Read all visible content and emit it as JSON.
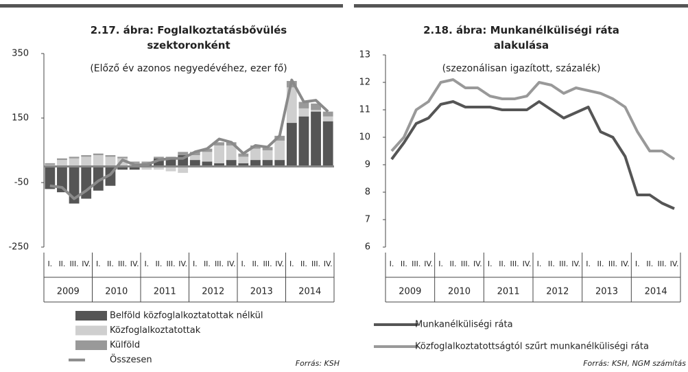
{
  "chart_data": [
    {
      "type": "bar",
      "stacked": true,
      "title": "2.17. ábra: Foglalkoztatásbővülés szektoronként",
      "subtitle": "(Előző év azonos negyedévéhez, ezer fő)",
      "categories": [
        "I.",
        "II.",
        "III.",
        "IV.",
        "I.",
        "II.",
        "III.",
        "IV.",
        "I.",
        "II.",
        "III.",
        "IV.",
        "I.",
        "II.",
        "III.",
        "IV.",
        "I.",
        "II.",
        "III.",
        "IV.",
        "I.",
        "II.",
        "III.",
        "IV."
      ],
      "years": [
        "2009",
        "2010",
        "2011",
        "2012",
        "2013",
        "2014"
      ],
      "ylim": [
        -250,
        350
      ],
      "yticks": [
        -250,
        -50,
        150,
        350
      ],
      "series": [
        {
          "name": "Belföld közfoglalkoztatottak nélkül",
          "color": "#555555",
          "values": [
            -70,
            -80,
            -115,
            -100,
            -75,
            -60,
            -10,
            -10,
            10,
            25,
            25,
            35,
            20,
            15,
            10,
            20,
            10,
            20,
            20,
            20,
            135,
            155,
            170,
            140
          ]
        },
        {
          "name": "Közfoglalkoztatottak",
          "color": "#cfcfcf",
          "values": [
            5,
            20,
            25,
            30,
            35,
            30,
            25,
            10,
            -10,
            -10,
            -15,
            -20,
            15,
            30,
            55,
            45,
            20,
            35,
            30,
            60,
            110,
            25,
            5,
            15
          ]
        },
        {
          "name": "Külföld",
          "color": "#999999",
          "values": [
            5,
            5,
            5,
            5,
            5,
            5,
            5,
            5,
            5,
            5,
            5,
            10,
            10,
            10,
            10,
            10,
            10,
            10,
            10,
            15,
            20,
            20,
            20,
            15
          ]
        },
        {
          "name": "Összesen",
          "type": "line",
          "color": "#8a8a8a",
          "values": [
            -60,
            -65,
            -100,
            -75,
            -45,
            -25,
            20,
            5,
            5,
            20,
            25,
            25,
            45,
            55,
            85,
            75,
            40,
            65,
            60,
            95,
            268,
            200,
            205,
            170
          ]
        }
      ],
      "source": "Forrás: KSH"
    },
    {
      "type": "line",
      "title": "2.18. ábra: Munkanélküliségi ráta alakulása",
      "subtitle": "(szezonálisan igazított, százalék)",
      "categories": [
        "I.",
        "II.",
        "III.",
        "IV.",
        "I.",
        "II.",
        "III.",
        "IV.",
        "I.",
        "II.",
        "III.",
        "IV.",
        "I.",
        "II.",
        "III.",
        "IV.",
        "I.",
        "II.",
        "III.",
        "IV.",
        "I.",
        "II.",
        "III.",
        "IV."
      ],
      "years": [
        "2009",
        "2010",
        "2011",
        "2012",
        "2013",
        "2014"
      ],
      "ylim": [
        6,
        13
      ],
      "yticks": [
        6,
        7,
        8,
        9,
        10,
        11,
        12,
        13
      ],
      "series": [
        {
          "name": "Munkanélküliségi ráta",
          "color": "#555555",
          "values": [
            9.2,
            9.8,
            10.5,
            10.7,
            11.2,
            11.3,
            11.1,
            11.1,
            11.1,
            11.0,
            11.0,
            11.0,
            11.3,
            11.0,
            10.7,
            10.9,
            11.1,
            10.2,
            10.0,
            9.3,
            7.9,
            7.9,
            7.6,
            7.4
          ]
        },
        {
          "name": "Közfoglalkoztatottságtól szűrt munkanélküliségi ráta",
          "color": "#999999",
          "values": [
            9.5,
            10.0,
            11.0,
            11.3,
            12.0,
            12.1,
            11.8,
            11.8,
            11.5,
            11.4,
            11.4,
            11.5,
            12.0,
            11.9,
            11.6,
            11.8,
            11.7,
            11.6,
            11.4,
            11.1,
            10.2,
            9.5,
            9.5,
            9.2
          ]
        }
      ],
      "source": "Forrás: KSH, NGM számítás"
    }
  ]
}
